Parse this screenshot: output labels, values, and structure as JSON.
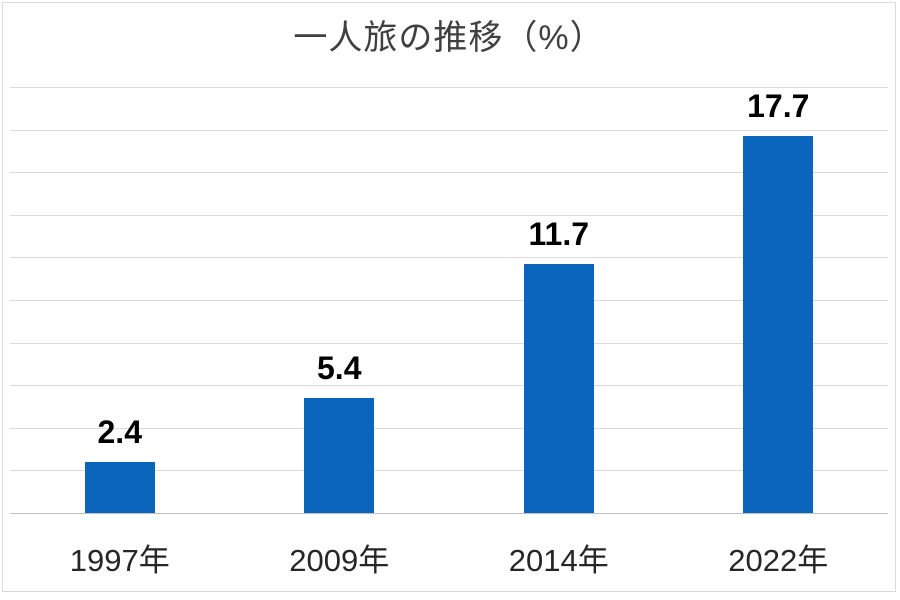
{
  "chart_data": {
    "type": "bar",
    "title": "一人旅の推移（%）",
    "categories": [
      "1997年",
      "2009年",
      "2014年",
      "2022年"
    ],
    "values": [
      2.4,
      5.4,
      11.7,
      17.7
    ],
    "data_labels": [
      "2.4",
      "5.4",
      "11.7",
      "17.7"
    ],
    "xlabel": "",
    "ylabel": "",
    "ylim": [
      0,
      20
    ],
    "gridline_step": 2,
    "grid": "horizontal",
    "legend": "none",
    "y_tick_labels_visible": false
  },
  "colors": {
    "bar": "#0b65bd",
    "gridline": "#dadada",
    "axis_line": "#c0c0c0",
    "title_text": "#404040",
    "value_label_text": "#000000",
    "category_label_text": "#262626",
    "background": "#ffffff",
    "frame_border": "#d9d9d9"
  }
}
